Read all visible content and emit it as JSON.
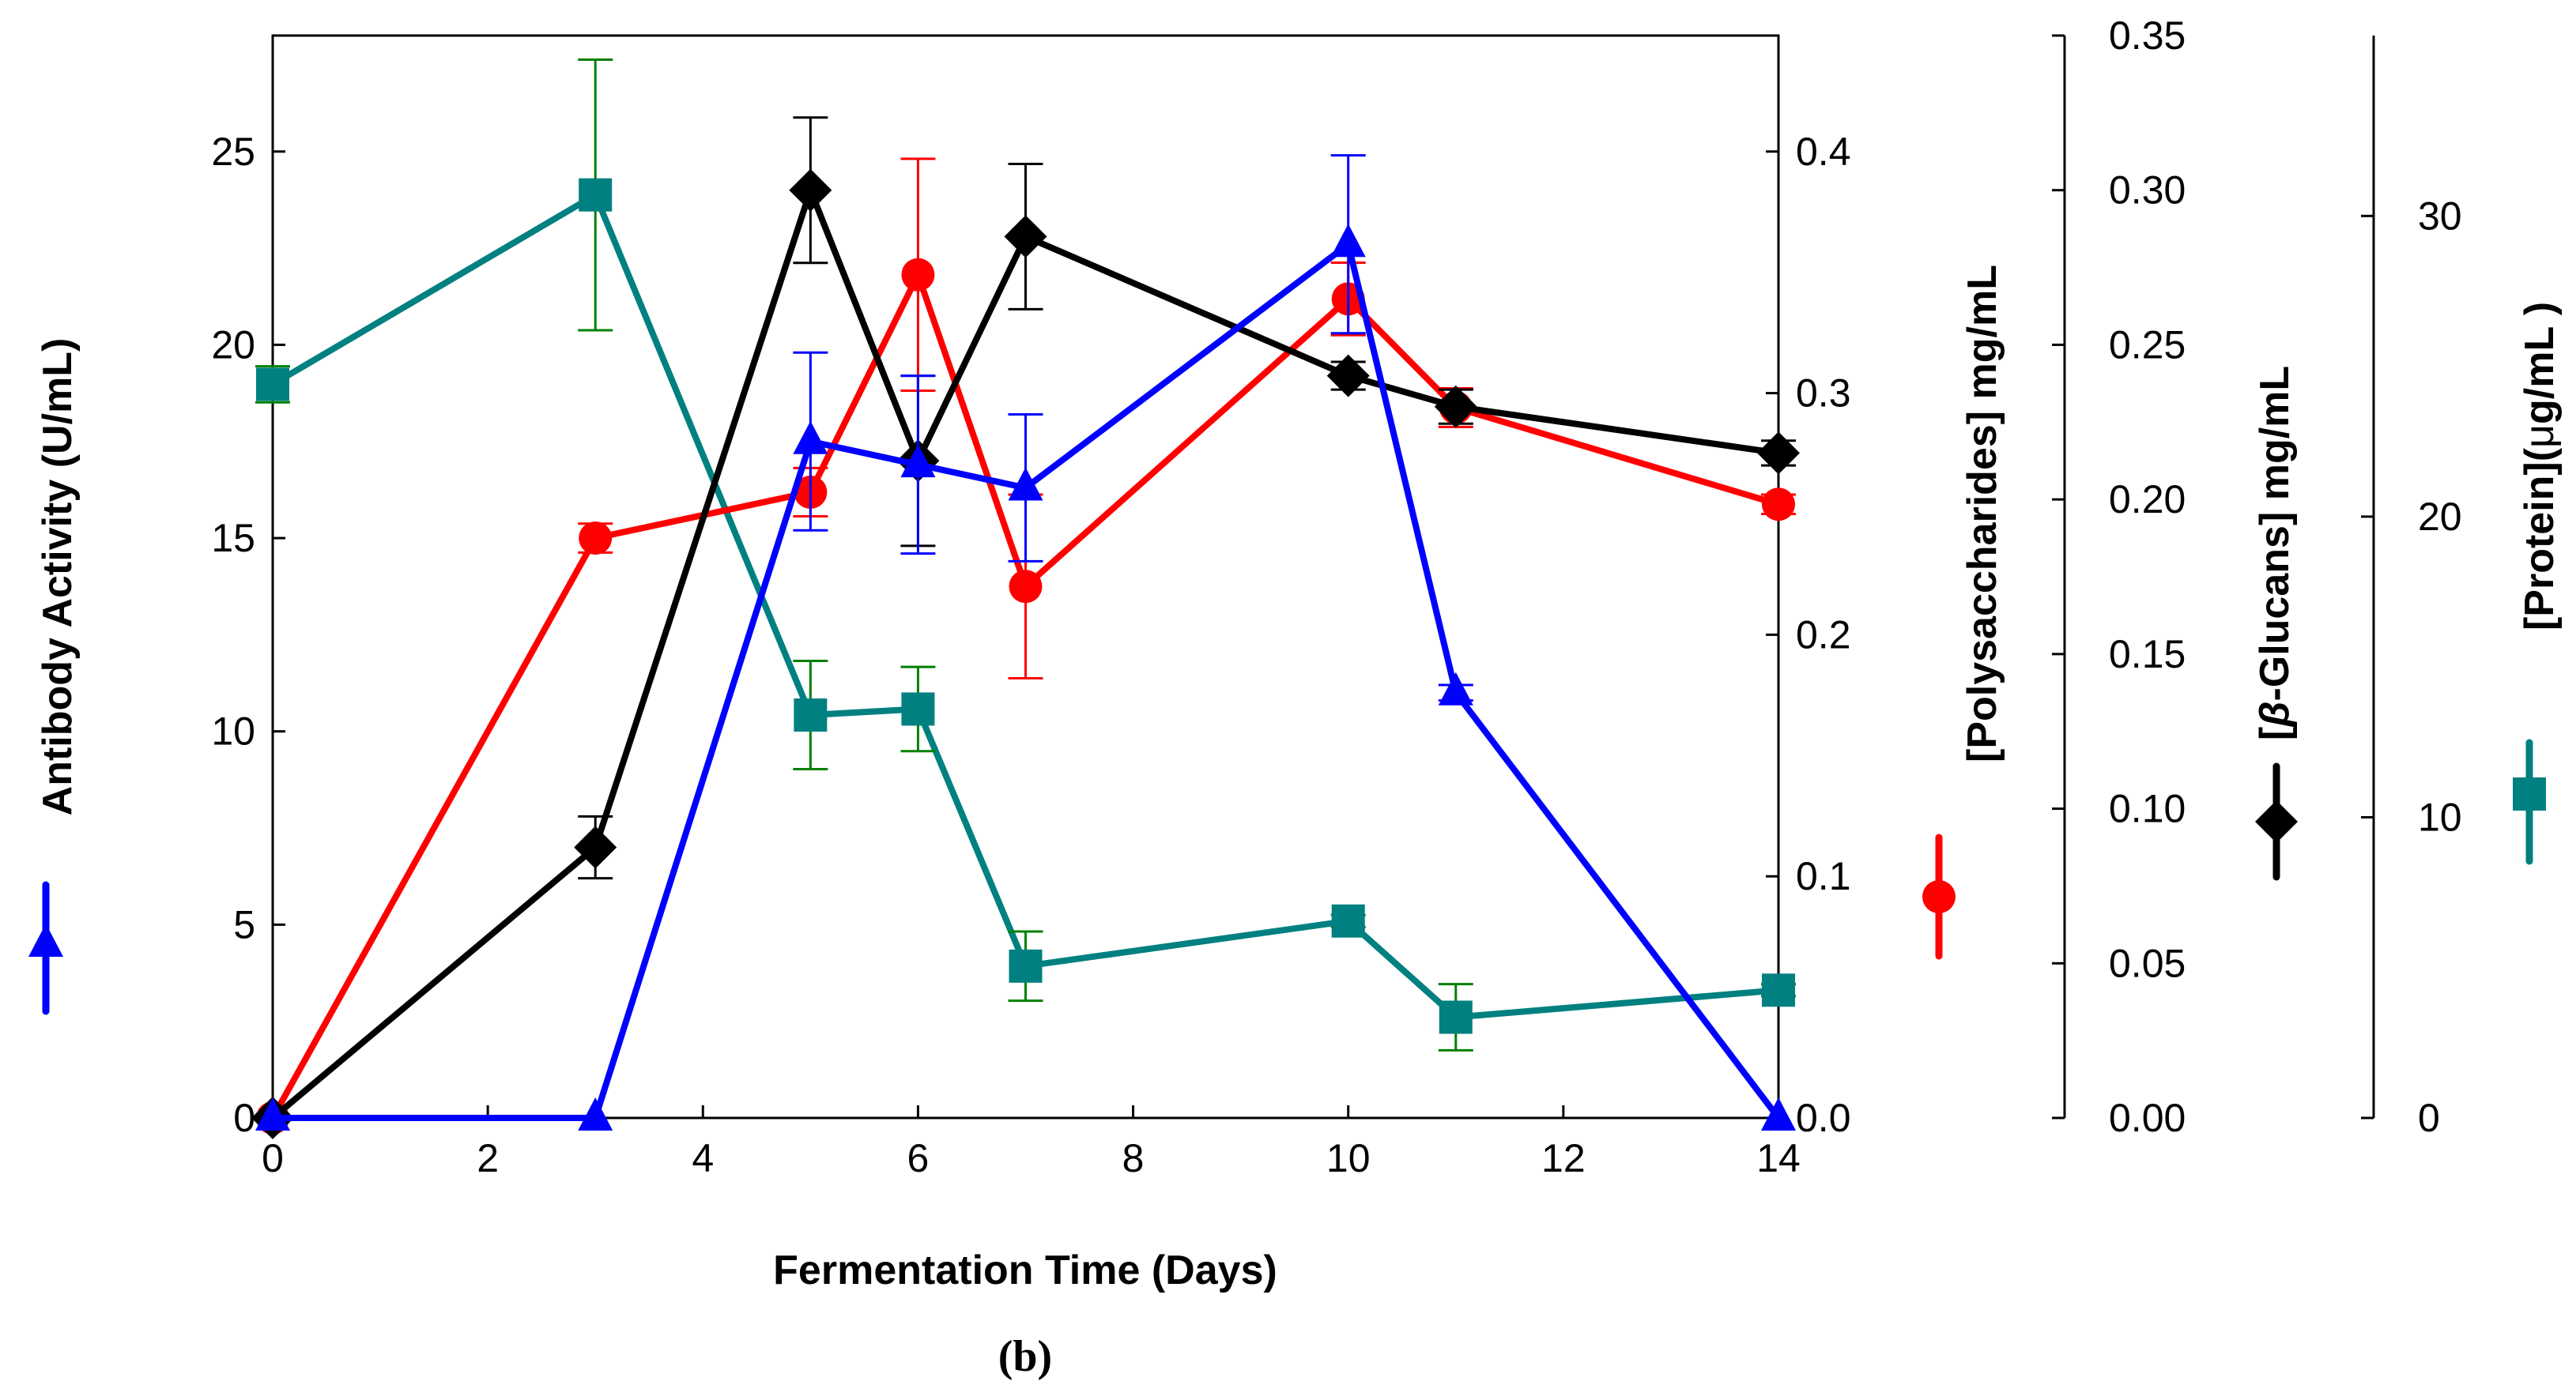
{
  "chart_data": {
    "type": "line",
    "caption": "(b)",
    "xlabel": "Fermentation Time (Days)",
    "xlim": [
      0,
      14
    ],
    "xticks": [
      0,
      2,
      4,
      6,
      8,
      10,
      12,
      14
    ],
    "axes": [
      {
        "id": "antibody",
        "label": "Antibody Activity (U/mL)",
        "ylim": [
          0,
          28
        ],
        "ticks": [
          "0",
          "5",
          "10",
          "15",
          "20",
          "25"
        ],
        "tick_values": [
          0,
          5,
          10,
          15,
          20,
          25
        ],
        "side": "left"
      },
      {
        "id": "polysaccharides",
        "label": "[Polysaccharides] mg/mL",
        "ylim": [
          0,
          0.448
        ],
        "ticks": [
          "0.0",
          "0.1",
          "0.2",
          "0.3",
          "0.4"
        ],
        "tick_values": [
          0,
          0.1,
          0.2,
          0.3,
          0.4
        ],
        "side": "right"
      },
      {
        "id": "glucans",
        "label_prefix": "[",
        "label_beta": "β",
        "label_suffix": "-Glucans] mg/mL",
        "ylim": [
          0,
          0.35
        ],
        "ticks": [
          "0.00",
          "0.05",
          "0.10",
          "0.15",
          "0.20",
          "0.25",
          "0.30",
          "0.35"
        ],
        "tick_values": [
          0,
          0.05,
          0.1,
          0.15,
          0.2,
          0.25,
          0.3,
          0.35
        ],
        "side": "offset-right-1"
      },
      {
        "id": "protein",
        "label_prefix": "[Protein](",
        "label_mu": "μ",
        "label_suffix": "g/mL )",
        "ylim": [
          0,
          36
        ],
        "ticks": [
          "0",
          "10",
          "20",
          "30"
        ],
        "tick_values": [
          0,
          10,
          20,
          30
        ],
        "side": "offset-right-2"
      }
    ],
    "series": [
      {
        "name": "Antibody Activity",
        "axis": "antibody",
        "color": "#0000ff",
        "marker": "triangle",
        "x": [
          0,
          3,
          5,
          6,
          7,
          10,
          11,
          14
        ],
        "y": [
          0,
          0,
          17.5,
          16.9,
          16.3,
          22.6,
          11.0,
          0
        ],
        "err": [
          0,
          0,
          2.3,
          2.3,
          1.9,
          2.3,
          0.2,
          0
        ]
      },
      {
        "name": "Polysaccharides",
        "axis": "polysaccharides",
        "color": "#ff0000",
        "marker": "circle",
        "x": [
          0,
          3,
          5,
          6,
          7,
          10,
          11,
          14
        ],
        "y": [
          0,
          0.24,
          0.259,
          0.349,
          0.22,
          0.339,
          0.294,
          0.254
        ],
        "err": [
          0,
          0.006,
          0.01,
          0.048,
          0.038,
          0.015,
          0.008,
          0.004
        ]
      },
      {
        "name": "β-Glucans",
        "axis": "glucans",
        "color": "#000000",
        "marker": "diamond",
        "x": [
          0,
          3,
          5,
          6,
          7,
          10,
          11,
          14
        ],
        "y": [
          0,
          0.0875,
          0.3,
          0.2125,
          0.285,
          0.24,
          0.23,
          0.215
        ],
        "err": [
          0,
          0.01,
          0.0235,
          0.0275,
          0.0235,
          0.0045,
          0.0055,
          0.004
        ]
      },
      {
        "name": "Protein",
        "axis": "protein",
        "color": "#008080",
        "marker": "square",
        "err_color": "#008000",
        "x": [
          0,
          3,
          5,
          6,
          7,
          10,
          11,
          14
        ],
        "y": [
          24.4,
          30.7,
          13.4,
          13.6,
          5.05,
          6.55,
          3.35,
          4.25
        ],
        "err": [
          0.6,
          4.5,
          1.8,
          1.4,
          1.15,
          0.2,
          1.1,
          0.2
        ]
      }
    ]
  }
}
